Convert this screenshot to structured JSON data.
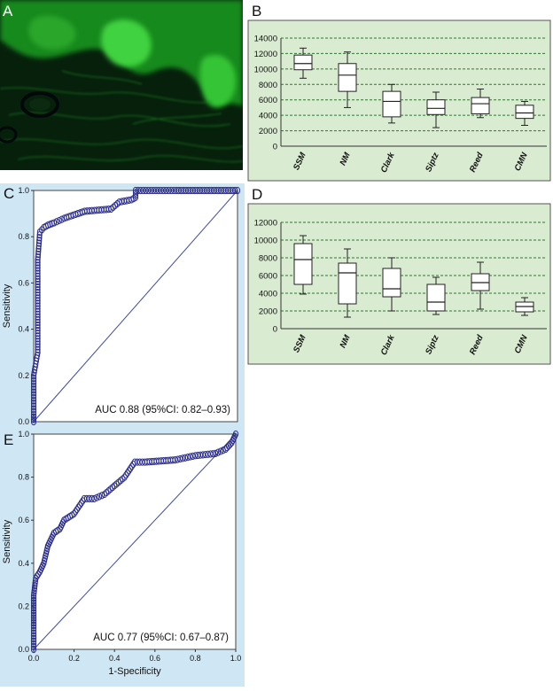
{
  "panels": {
    "a": {
      "label": "A"
    },
    "b": {
      "label": "B"
    },
    "c": {
      "label": "C"
    },
    "d": {
      "label": "D"
    },
    "e": {
      "label": "E"
    }
  },
  "colors": {
    "box_bg": "#d9ebd1",
    "roc_bg": "#cfe6f5",
    "marker": "#2b2d8c",
    "diagonal": "#3d4aa6",
    "micro_green": "#3dd13d"
  },
  "chart_data": [
    {
      "id": "B",
      "type": "box",
      "categories": [
        "SSM",
        "NM",
        "Clark",
        "Siptz",
        "Reed",
        "CMN"
      ],
      "boxes": [
        {
          "min": 8800,
          "q1": 9900,
          "median": 10700,
          "q3": 11800,
          "max": 12700
        },
        {
          "min": 5000,
          "q1": 7100,
          "median": 9200,
          "q3": 10700,
          "max": 12200
        },
        {
          "min": 3000,
          "q1": 3800,
          "median": 5800,
          "q3": 7100,
          "max": 8000
        },
        {
          "min": 2400,
          "q1": 4100,
          "median": 4900,
          "q3": 6000,
          "max": 7000
        },
        {
          "min": 3700,
          "q1": 4200,
          "median": 5500,
          "q3": 6300,
          "max": 7400
        },
        {
          "min": 2700,
          "q1": 3600,
          "median": 4300,
          "q3": 5300,
          "max": 5800
        }
      ],
      "yticks": [
        "0",
        "2000",
        "4000",
        "6000",
        "8000",
        "10000",
        "12000",
        "14000"
      ],
      "ylim": [
        0,
        14000
      ],
      "grid": true
    },
    {
      "id": "D",
      "type": "box",
      "categories": [
        "SSM",
        "NM",
        "Clark",
        "Siptz",
        "Reed",
        "CMN"
      ],
      "boxes": [
        {
          "min": 3900,
          "q1": 5000,
          "median": 7800,
          "q3": 9600,
          "max": 10500
        },
        {
          "min": 1300,
          "q1": 2800,
          "median": 6300,
          "q3": 7400,
          "max": 9000
        },
        {
          "min": 2000,
          "q1": 3600,
          "median": 4500,
          "q3": 6800,
          "max": 8000
        },
        {
          "min": 1600,
          "q1": 2000,
          "median": 3000,
          "q3": 5000,
          "max": 5800
        },
        {
          "min": 2200,
          "q1": 4300,
          "median": 5200,
          "q3": 6200,
          "max": 7500
        },
        {
          "min": 1500,
          "q1": 1900,
          "median": 2500,
          "q3": 3000,
          "max": 3500
        }
      ],
      "yticks": [
        "0",
        "2000",
        "4000",
        "6000",
        "8000",
        "10000",
        "12000"
      ],
      "ylim": [
        0,
        12000
      ],
      "grid": true
    },
    {
      "id": "C",
      "type": "line",
      "ylabel": "Sensitivity",
      "annotation": "AUC 0.88 (95%CI: 0.82–0.93)",
      "xlim": [
        0,
        1
      ],
      "ylim": [
        0,
        1
      ],
      "yticks": [
        "0.0",
        "0.2",
        "0.4",
        "0.6",
        "0.8",
        "1.0"
      ],
      "curve_x": [
        0.0,
        0.0,
        0.0,
        0.02,
        0.02,
        0.02,
        0.03,
        0.05,
        0.07,
        0.1,
        0.15,
        0.25,
        0.38,
        0.42,
        0.48,
        0.5,
        0.5,
        0.55,
        0.6,
        0.7,
        0.85,
        1.0
      ],
      "curve_y": [
        0.0,
        0.03,
        0.2,
        0.3,
        0.5,
        0.7,
        0.82,
        0.84,
        0.85,
        0.86,
        0.88,
        0.91,
        0.92,
        0.95,
        0.96,
        0.97,
        1.0,
        1.0,
        1.0,
        1.0,
        1.0,
        1.0
      ]
    },
    {
      "id": "E",
      "type": "line",
      "xlabel": "1-Specificity",
      "ylabel": "Sensitivity",
      "annotation": "AUC 0.77 (95%CI: 0.67–0.87)",
      "xlim": [
        0,
        1
      ],
      "ylim": [
        0,
        1
      ],
      "xticks": [
        "0.0",
        "0.2",
        "0.4",
        "0.6",
        "0.8",
        "1.0"
      ],
      "yticks": [
        "0.0",
        "0.2",
        "0.4",
        "0.6",
        "0.8",
        "1.0"
      ],
      "curve_x": [
        0.0,
        0.0,
        0.0,
        0.01,
        0.03,
        0.05,
        0.07,
        0.1,
        0.13,
        0.15,
        0.2,
        0.25,
        0.3,
        0.35,
        0.4,
        0.45,
        0.5,
        0.55,
        0.7,
        0.8,
        0.9,
        0.95,
        0.98,
        1.0
      ],
      "curve_y": [
        0.0,
        0.1,
        0.25,
        0.33,
        0.36,
        0.4,
        0.48,
        0.54,
        0.56,
        0.6,
        0.63,
        0.7,
        0.7,
        0.72,
        0.76,
        0.8,
        0.87,
        0.87,
        0.88,
        0.9,
        0.91,
        0.93,
        0.96,
        1.0
      ]
    }
  ]
}
